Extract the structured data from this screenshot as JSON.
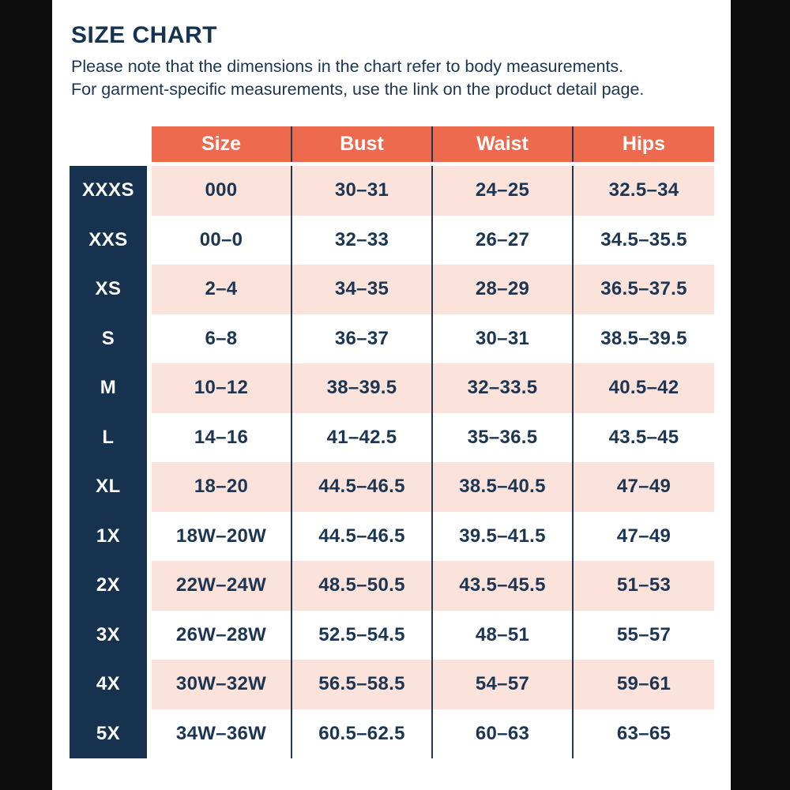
{
  "page": {
    "title": "SIZE CHART",
    "note_line1": "Please note that the dimensions in the chart refer to body measurements.",
    "note_line2": "For garment-specific measurements, use the link on the product detail page."
  },
  "colors": {
    "frame": "#0d0d0d",
    "header_bg": "#ed6a4f",
    "header_text": "#ffffff",
    "label_bg": "#16324e",
    "label_text": "#ffffff",
    "row_alt_bg": "#fbe3dc",
    "row_bg": "#ffffff",
    "body_text": "#1b3553",
    "divider": "#223750"
  },
  "chart_data": {
    "type": "table",
    "title": "SIZE CHART",
    "columns": [
      "Size",
      "Bust",
      "Waist",
      "Hips"
    ],
    "row_labels": [
      "XXXS",
      "XXS",
      "XS",
      "S",
      "M",
      "L",
      "XL",
      "1X",
      "2X",
      "3X",
      "4X",
      "5X"
    ],
    "rows": [
      [
        "000",
        "30–31",
        "24–25",
        "32.5–34"
      ],
      [
        "00–0",
        "32–33",
        "26–27",
        "34.5–35.5"
      ],
      [
        "2–4",
        "34–35",
        "28–29",
        "36.5–37.5"
      ],
      [
        "6–8",
        "36–37",
        "30–31",
        "38.5–39.5"
      ],
      [
        "10–12",
        "38–39.5",
        "32–33.5",
        "40.5–42"
      ],
      [
        "14–16",
        "41–42.5",
        "35–36.5",
        "43.5–45"
      ],
      [
        "18–20",
        "44.5–46.5",
        "38.5–40.5",
        "47–49"
      ],
      [
        "18W–20W",
        "44.5–46.5",
        "39.5–41.5",
        "47–49"
      ],
      [
        "22W–24W",
        "48.5–50.5",
        "43.5–45.5",
        "51–53"
      ],
      [
        "26W–28W",
        "52.5–54.5",
        "48–51",
        "55–57"
      ],
      [
        "30W–32W",
        "56.5–58.5",
        "54–57",
        "59–61"
      ],
      [
        "34W–36W",
        "60.5–62.5",
        "60–63",
        "63–65"
      ]
    ],
    "layout": {
      "alternating_row_shading": "rows 1,3,5,7,9,11 pink; rows 2,4,6,8,10,12 white",
      "grid": "vertical dividers between data columns only"
    }
  }
}
